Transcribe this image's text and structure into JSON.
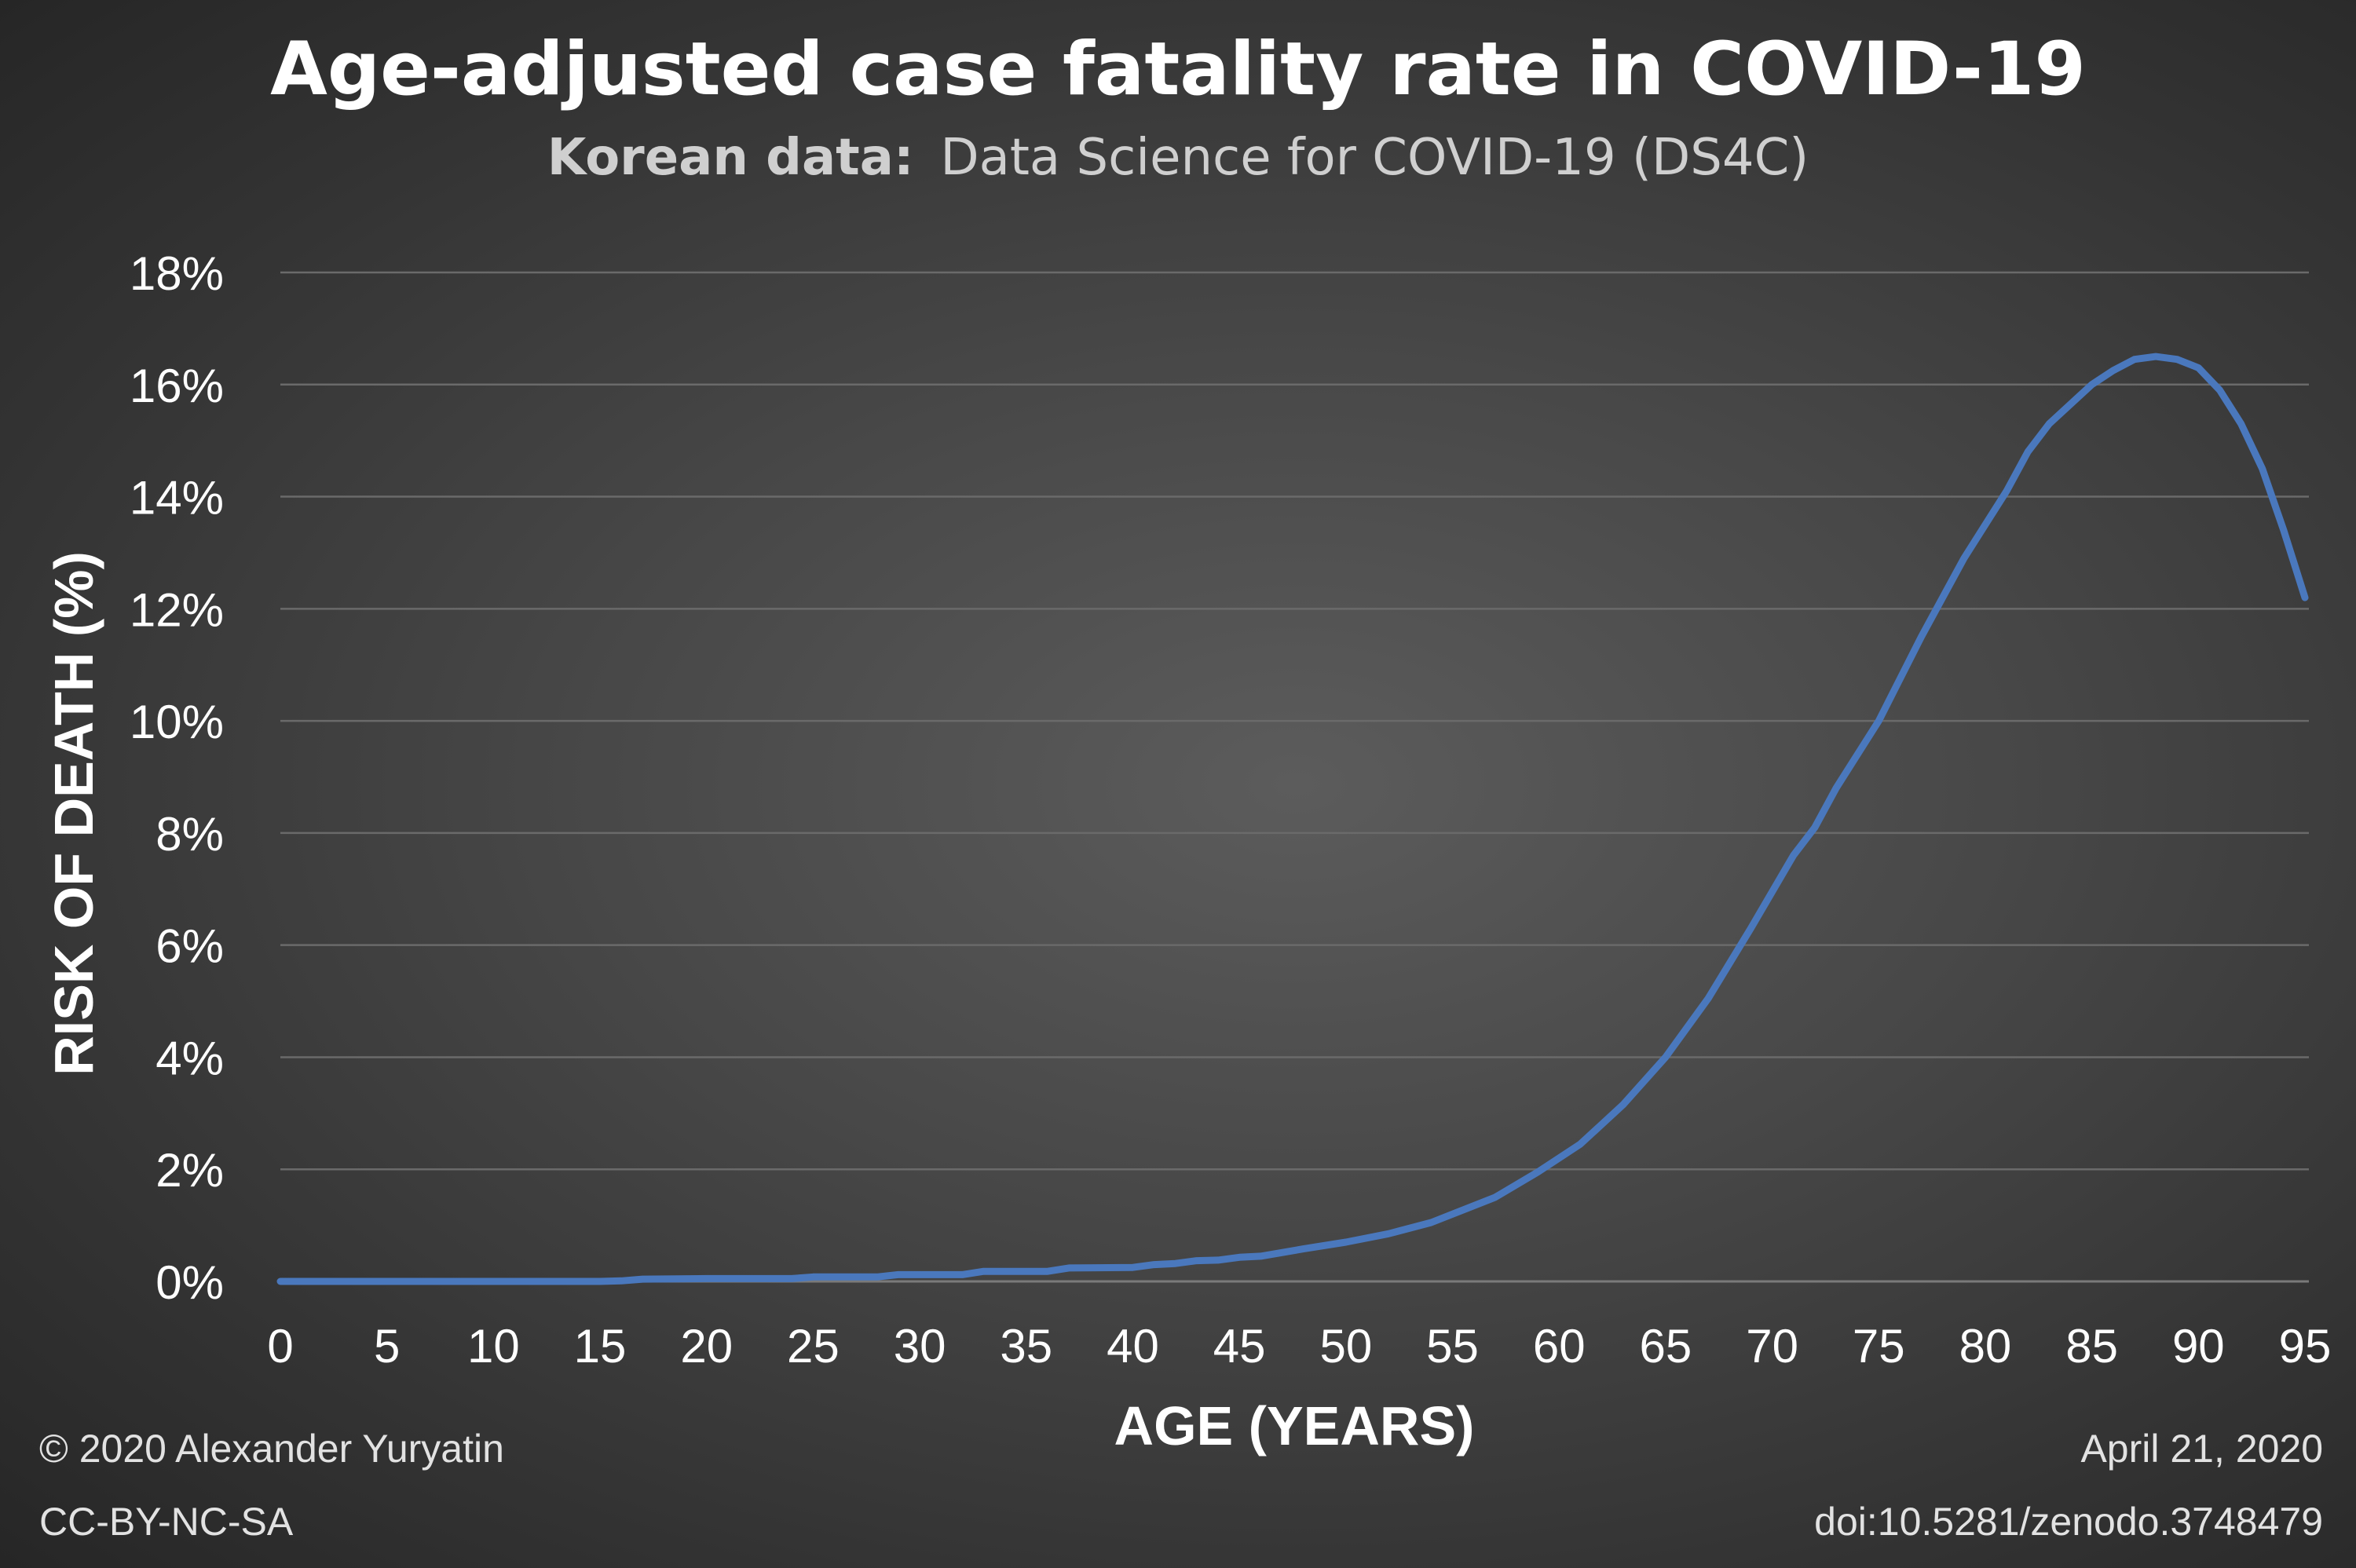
{
  "chart_data": {
    "type": "line",
    "title": "Age-adjusted case fatality rate in COVID-19",
    "subtitle_bold": "Korean data:",
    "subtitle_rest": "Data Science for COVID-19 (DS4C)",
    "xlabel": "AGE (YEARS)",
    "ylabel": "RISK OF DEATH (%)",
    "xlim": [
      0,
      95
    ],
    "ylim": [
      0,
      18
    ],
    "grid": true,
    "x_ticks": [
      "0",
      "5",
      "10",
      "15",
      "20",
      "25",
      "30",
      "35",
      "40",
      "45",
      "50",
      "55",
      "60",
      "65",
      "70",
      "75",
      "80",
      "85",
      "90",
      "95"
    ],
    "y_ticks": [
      "0%",
      "2%",
      "4%",
      "6%",
      "8%",
      "10%",
      "12%",
      "14%",
      "16%",
      "18%"
    ],
    "series_color": "#4a78bd",
    "series": [
      {
        "x": [
          0,
          5,
          10,
          15,
          16,
          17,
          20,
          24,
          25,
          28,
          29,
          32,
          33,
          36,
          37,
          40,
          41,
          42,
          43,
          44,
          45,
          46,
          48,
          50,
          52,
          54,
          55,
          57,
          59,
          61,
          63,
          65,
          67,
          69,
          71,
          72,
          73,
          75,
          77,
          79,
          81,
          82,
          83,
          85,
          86,
          87,
          88,
          89,
          90,
          91,
          92,
          93,
          94,
          95
        ],
        "y": [
          0,
          0,
          0,
          0,
          0.01,
          0.04,
          0.05,
          0.05,
          0.08,
          0.08,
          0.12,
          0.12,
          0.18,
          0.18,
          0.24,
          0.25,
          0.3,
          0.32,
          0.37,
          0.38,
          0.43,
          0.45,
          0.58,
          0.7,
          0.85,
          1.05,
          1.2,
          1.5,
          1.95,
          2.45,
          3.15,
          4.0,
          5.05,
          6.3,
          7.6,
          8.1,
          8.8,
          10.0,
          11.5,
          12.9,
          14.1,
          14.8,
          15.3,
          16.0,
          16.25,
          16.45,
          16.5,
          16.45,
          16.3,
          15.9,
          15.3,
          14.5,
          13.4,
          12.2
        ]
      }
    ]
  },
  "footer": {
    "copyright": "© 2020 Alexander Yuryatin",
    "license": "CC-BY-NC-SA",
    "date": "April 21, 2020",
    "doi": "doi:10.5281/zenodo.3748479"
  }
}
